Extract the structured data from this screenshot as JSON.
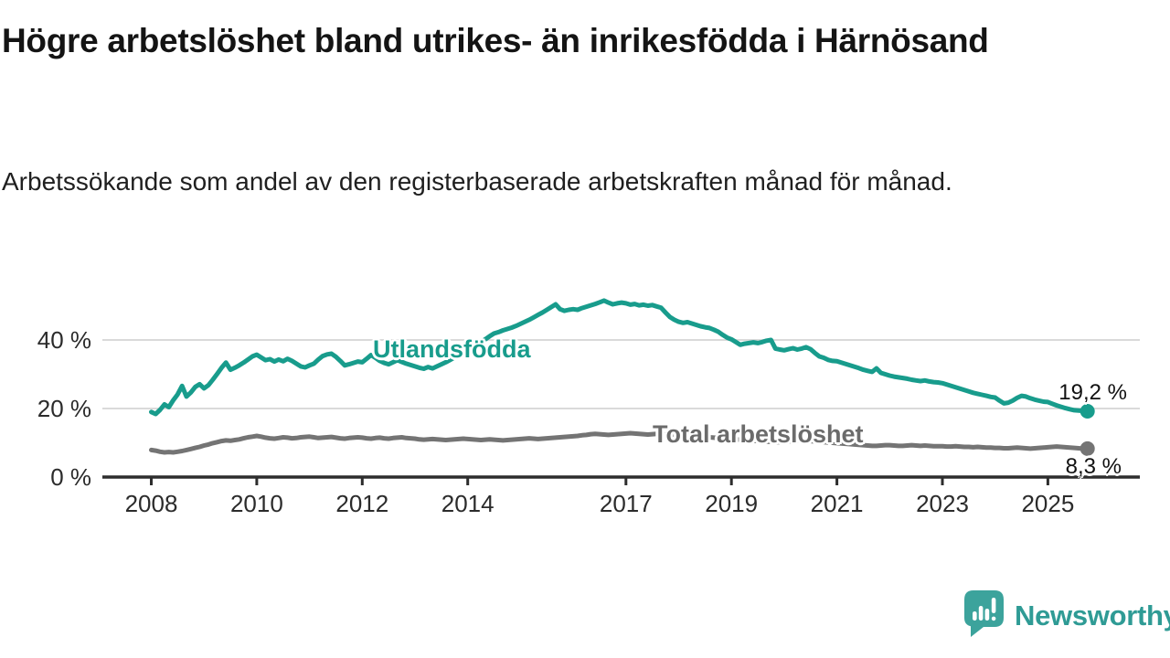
{
  "title": "Högre arbetslöshet bland utrikes- än inrikesfödda i Härnösand",
  "subtitle": "Arbetssökande som andel av den registerbaserade arbetskraften månad för månad.",
  "colors": {
    "foreign_born_line": "#189C8C",
    "total_line": "#747474",
    "total_label": "#6B6B6B",
    "grid": "#DADADA",
    "axis": "#2D2D2D",
    "text": "#1A1A1A",
    "brand_teal": "#2F9B95",
    "brand_icon_teal": "#3CA39C"
  },
  "branding": {
    "logo_text": "Newsworthy",
    "icon": "newsworthy-speech-bubble-bar-chart-icon"
  },
  "chart_data": {
    "type": "line",
    "title": "Högre arbetslöshet bland utrikes- än inrikesfödda i Härnösand",
    "subtitle": "Arbetssökande som andel av den registerbaserade arbetskraften månad för månad.",
    "unit": "%",
    "x_unit": "month",
    "x_start": "2008-01",
    "x_end": "2025-10",
    "ylim": [
      0,
      55
    ],
    "grid": "horizontal",
    "y_ticks": [
      {
        "value": 0,
        "label": "0 %"
      },
      {
        "value": 20,
        "label": "20 %"
      },
      {
        "value": 40,
        "label": "40 %"
      }
    ],
    "x_ticks": [
      {
        "year": 2008,
        "label": "2008"
      },
      {
        "year": 2010,
        "label": "2010"
      },
      {
        "year": 2012,
        "label": "2012"
      },
      {
        "year": 2014,
        "label": "2014"
      },
      {
        "year": 2017,
        "label": "2017"
      },
      {
        "year": 2019,
        "label": "2019"
      },
      {
        "year": 2021,
        "label": "2021"
      },
      {
        "year": 2023,
        "label": "2023"
      },
      {
        "year": 2025,
        "label": "2025"
      }
    ],
    "series": [
      {
        "id": "utlandsfodda",
        "name": "Utlandsfödda",
        "color": "#189C8C",
        "label_color": "#189C8C",
        "end_value": 19.2,
        "end_label": "19,2 %",
        "values": [
          19.0,
          18.4,
          19.6,
          21.2,
          20.4,
          22.4,
          24.1,
          26.6,
          23.5,
          24.7,
          26.3,
          27.1,
          25.9,
          26.8,
          28.4,
          30.1,
          31.9,
          33.4,
          31.3,
          31.9,
          32.6,
          33.4,
          34.3,
          35.2,
          35.7,
          34.9,
          34.1,
          34.4,
          33.7,
          34.3,
          33.8,
          34.5,
          33.9,
          33.1,
          32.3,
          32.0,
          32.6,
          33.1,
          34.3,
          35.3,
          35.8,
          36.0,
          35.1,
          33.9,
          32.6,
          32.9,
          33.3,
          33.7,
          33.5,
          34.5,
          35.6,
          34.8,
          33.9,
          33.3,
          32.9,
          33.5,
          34.1,
          33.6,
          33.1,
          32.7,
          32.3,
          31.9,
          31.6,
          32.1,
          31.7,
          32.3,
          32.9,
          33.5,
          34.2,
          34.9,
          35.6,
          36.3,
          37.1,
          37.9,
          38.6,
          39.4,
          40.2,
          41.1,
          41.9,
          42.3,
          42.8,
          43.2,
          43.6,
          44.1,
          44.7,
          45.3,
          45.9,
          46.6,
          47.3,
          48.0,
          48.8,
          49.6,
          50.4,
          49.0,
          48.5,
          48.8,
          49.0,
          48.8,
          49.3,
          49.7,
          50.1,
          50.5,
          51.0,
          51.5,
          50.9,
          50.4,
          50.7,
          50.9,
          50.7,
          50.3,
          50.5,
          50.1,
          50.3,
          50.0,
          50.2,
          49.8,
          49.4,
          48.0,
          46.7,
          45.9,
          45.3,
          45.0,
          45.2,
          44.8,
          44.4,
          44.0,
          43.7,
          43.5,
          43.0,
          42.4,
          41.5,
          40.7,
          40.2,
          39.4,
          38.6,
          38.9,
          39.1,
          39.3,
          39.1,
          39.4,
          39.8,
          40.0,
          37.5,
          37.2,
          37.0,
          37.3,
          37.6,
          37.2,
          37.5,
          37.9,
          37.3,
          36.2,
          35.2,
          34.8,
          34.2,
          33.9,
          33.8,
          33.4,
          33.0,
          32.6,
          32.2,
          31.8,
          31.3,
          31.0,
          30.7,
          31.7,
          30.4,
          30.0,
          29.6,
          29.3,
          29.1,
          28.9,
          28.7,
          28.4,
          28.2,
          28.0,
          28.2,
          27.9,
          27.7,
          27.6,
          27.4,
          27.0,
          26.6,
          26.2,
          25.8,
          25.4,
          25.0,
          24.6,
          24.3,
          24.0,
          23.7,
          23.4,
          23.2,
          22.3,
          21.5,
          21.7,
          22.3,
          23.1,
          23.7,
          23.5,
          23.0,
          22.6,
          22.3,
          22.0,
          21.9,
          21.4,
          20.9,
          20.5,
          20.1,
          19.8,
          19.5,
          19.4,
          19.3,
          19.2
        ]
      },
      {
        "id": "total",
        "name": "Total arbetslöshet",
        "color": "#747474",
        "label_color": "#6B6B6B",
        "end_value": 8.3,
        "end_label": "8,3 %",
        "values": [
          7.9,
          7.7,
          7.4,
          7.2,
          7.3,
          7.2,
          7.4,
          7.6,
          7.9,
          8.2,
          8.5,
          8.8,
          9.2,
          9.5,
          9.9,
          10.2,
          10.5,
          10.7,
          10.6,
          10.8,
          11.0,
          11.3,
          11.6,
          11.8,
          12.0,
          11.8,
          11.5,
          11.3,
          11.2,
          11.4,
          11.6,
          11.5,
          11.3,
          11.4,
          11.6,
          11.7,
          11.8,
          11.6,
          11.4,
          11.5,
          11.6,
          11.7,
          11.5,
          11.3,
          11.2,
          11.4,
          11.5,
          11.6,
          11.5,
          11.3,
          11.2,
          11.4,
          11.5,
          11.3,
          11.2,
          11.4,
          11.5,
          11.6,
          11.4,
          11.3,
          11.2,
          11.0,
          10.9,
          11.0,
          11.1,
          11.0,
          10.9,
          10.8,
          10.9,
          11.0,
          11.1,
          11.2,
          11.1,
          11.0,
          10.9,
          10.8,
          10.9,
          11.0,
          10.9,
          10.8,
          10.7,
          10.8,
          10.9,
          11.0,
          11.1,
          11.2,
          11.3,
          11.2,
          11.1,
          11.2,
          11.3,
          11.4,
          11.5,
          11.6,
          11.7,
          11.8,
          11.9,
          12.0,
          12.2,
          12.3,
          12.5,
          12.6,
          12.5,
          12.4,
          12.3,
          12.4,
          12.5,
          12.6,
          12.7,
          12.8,
          12.7,
          12.6,
          12.5,
          12.4,
          12.5,
          12.6,
          12.5,
          12.4,
          12.3,
          12.4,
          12.3,
          12.2,
          12.1,
          12.0,
          11.9,
          11.8,
          11.7,
          11.6,
          11.5,
          11.4,
          11.3,
          11.2,
          11.1,
          11.0,
          10.9,
          10.8,
          10.7,
          10.6,
          10.5,
          10.4,
          10.3,
          10.3,
          10.2,
          10.2,
          10.3,
          10.4,
          10.6,
          10.8,
          10.7,
          10.6,
          10.5,
          10.4,
          10.3,
          10.2,
          10.1,
          10.0,
          9.9,
          9.8,
          9.7,
          9.6,
          9.5,
          9.4,
          9.3,
          9.2,
          9.1,
          9.1,
          9.2,
          9.3,
          9.3,
          9.2,
          9.1,
          9.1,
          9.2,
          9.3,
          9.2,
          9.1,
          9.2,
          9.1,
          9.0,
          9.0,
          9.0,
          8.9,
          8.9,
          9.0,
          8.9,
          8.8,
          8.8,
          8.7,
          8.8,
          8.7,
          8.6,
          8.6,
          8.5,
          8.5,
          8.4,
          8.4,
          8.5,
          8.6,
          8.5,
          8.4,
          8.3,
          8.4,
          8.5,
          8.6,
          8.7,
          8.8,
          8.9,
          8.8,
          8.7,
          8.6,
          8.5,
          8.4,
          8.3,
          8.3
        ]
      }
    ]
  }
}
